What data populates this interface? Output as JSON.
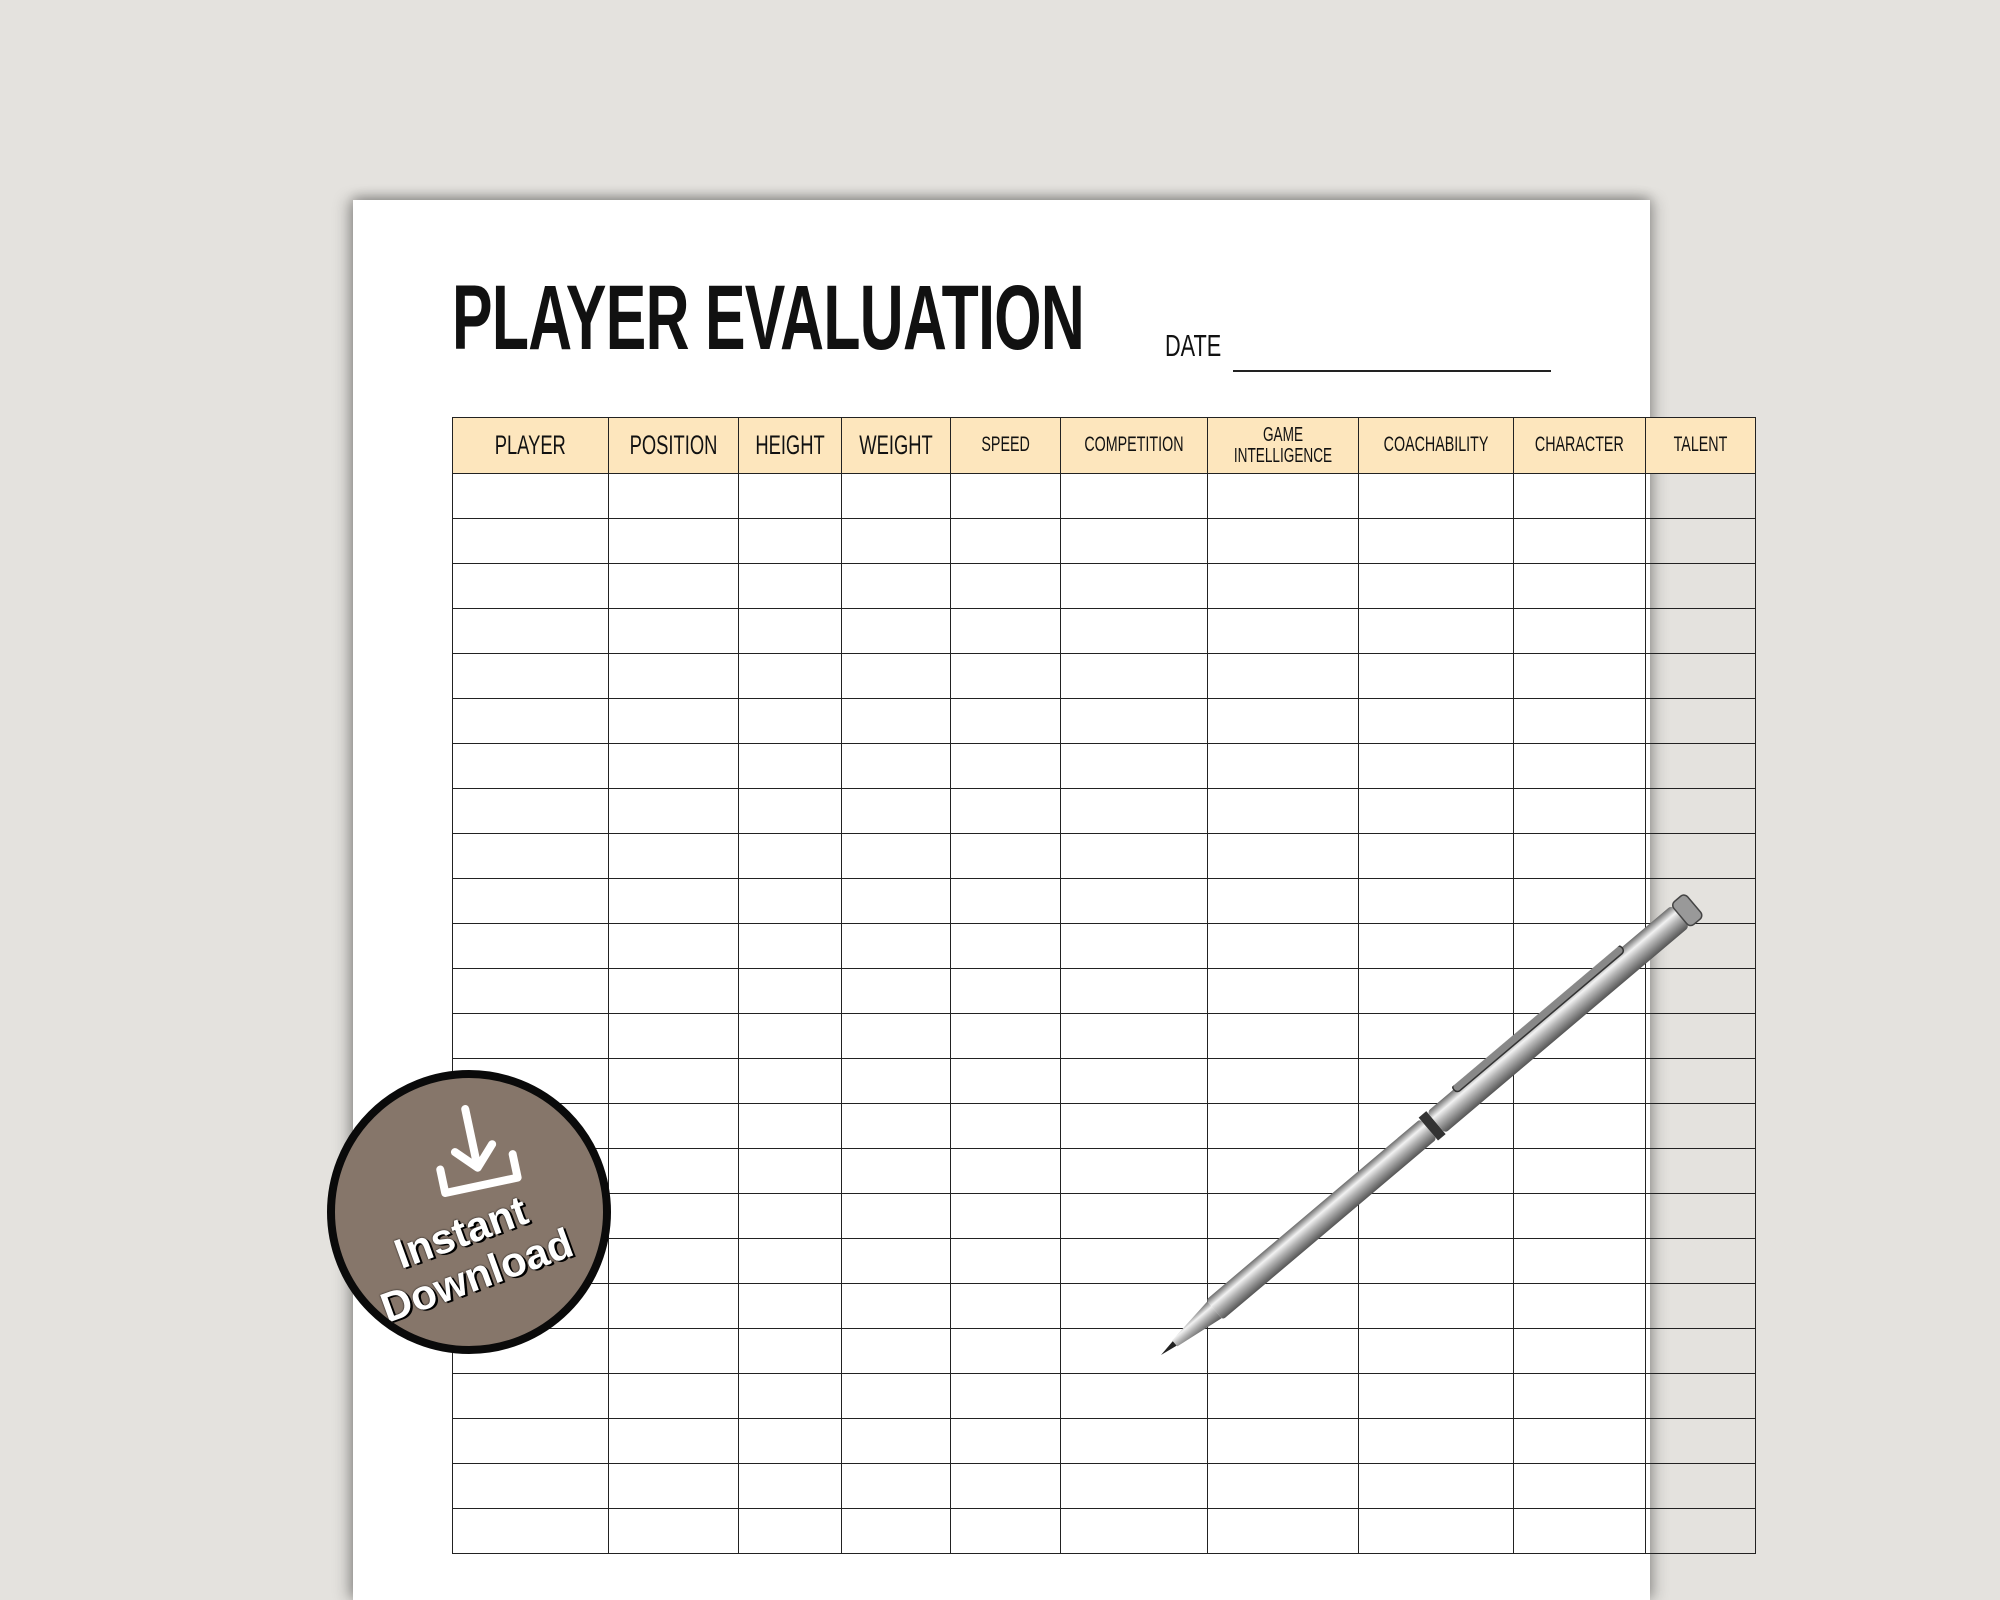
{
  "document": {
    "title": "PLAYER EVALUATION",
    "date_label": "DATE",
    "table": {
      "headers": [
        "PLAYER",
        "POSITION",
        "HEIGHT",
        "WEIGHT",
        "SPEED",
        "COMPETITION",
        "GAME INTELLIGENCE",
        "COACHABILITY",
        "CHARACTER",
        "TALENT"
      ],
      "header_color": "#fde6bd"
    }
  },
  "badge": {
    "icon": "download-icon",
    "line1": "Instant",
    "line2": "Download",
    "color": "#86766a"
  },
  "pen": {
    "icon": "pen-icon"
  }
}
